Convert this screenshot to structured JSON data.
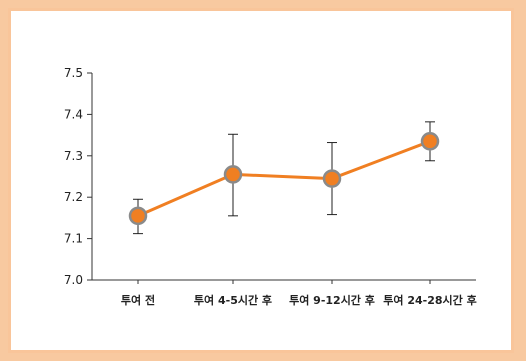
{
  "chart_data": {
    "type": "line",
    "title": "",
    "xlabel": "",
    "ylabel": "",
    "categories": [
      "투여 전",
      "투여 4-5시간 후",
      "투여 9-12시간 후",
      "투여 24-28시간 후"
    ],
    "series": [
      {
        "values": [
          7.155,
          7.255,
          7.245,
          7.335
        ],
        "error_low": [
          7.112,
          7.155,
          7.158,
          7.288
        ],
        "error_high": [
          7.195,
          7.352,
          7.332,
          7.382
        ],
        "color": "#f07f22"
      }
    ],
    "ylim": [
      7.0,
      7.5
    ],
    "yticks": [
      "7.5",
      "7.4",
      "7.3",
      "7.2",
      "7.1",
      "7.0"
    ],
    "grid": false
  },
  "colors": {
    "background_border": "#f8c9a0",
    "line": "#f07f22",
    "marker_fill": "#f07f22",
    "marker_stroke": "#8a8a8a"
  }
}
